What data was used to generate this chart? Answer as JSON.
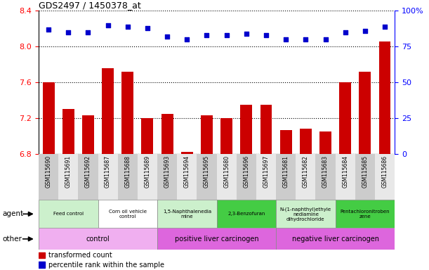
{
  "title": "GDS2497 / 1450378_at",
  "samples": [
    "GSM115690",
    "GSM115691",
    "GSM115692",
    "GSM115687",
    "GSM115688",
    "GSM115689",
    "GSM115693",
    "GSM115694",
    "GSM115695",
    "GSM115680",
    "GSM115696",
    "GSM115697",
    "GSM115681",
    "GSM115682",
    "GSM115683",
    "GSM115684",
    "GSM115685",
    "GSM115686"
  ],
  "transformed_counts": [
    7.6,
    7.3,
    7.23,
    7.76,
    7.72,
    7.2,
    7.25,
    6.82,
    7.23,
    7.2,
    7.35,
    7.35,
    7.07,
    7.08,
    7.05,
    7.6,
    7.72,
    8.06
  ],
  "percentile_ranks": [
    87,
    85,
    85,
    90,
    89,
    88,
    82,
    80,
    83,
    83,
    84,
    83,
    80,
    80,
    80,
    85,
    86,
    89
  ],
  "ylim_left": [
    6.8,
    8.4
  ],
  "ylim_right": [
    0,
    100
  ],
  "yticks_left": [
    6.8,
    7.2,
    7.6,
    8.0,
    8.4
  ],
  "yticks_right": [
    0,
    25,
    50,
    75,
    100
  ],
  "bar_color": "#cc0000",
  "dot_color": "#0000cc",
  "agent_groups": [
    {
      "label": "Feed control",
      "start": 0,
      "end": 3,
      "color": "#ccf0cc"
    },
    {
      "label": "Corn oil vehicle\ncontrol",
      "start": 3,
      "end": 6,
      "color": "#ffffff"
    },
    {
      "label": "1,5-Naphthalenedia\nmine",
      "start": 6,
      "end": 9,
      "color": "#ccf0cc"
    },
    {
      "label": "2,3-Benzofuran",
      "start": 9,
      "end": 12,
      "color": "#44cc44"
    },
    {
      "label": "N-(1-naphthyl)ethyle\nnediamine\ndihydrochloride",
      "start": 12,
      "end": 15,
      "color": "#ccf0cc"
    },
    {
      "label": "Pentachloronitroben\nzene",
      "start": 15,
      "end": 18,
      "color": "#44cc44"
    }
  ],
  "other_groups": [
    {
      "label": "control",
      "start": 0,
      "end": 6,
      "color": "#f0aff0"
    },
    {
      "label": "positive liver carcinogen",
      "start": 6,
      "end": 12,
      "color": "#dd66dd"
    },
    {
      "label": "negative liver carcinogen",
      "start": 12,
      "end": 18,
      "color": "#dd66dd"
    }
  ],
  "tick_bg_even": "#cccccc",
  "tick_bg_odd": "#e8e8e8",
  "left_panel_bg": "#f0f0f0"
}
